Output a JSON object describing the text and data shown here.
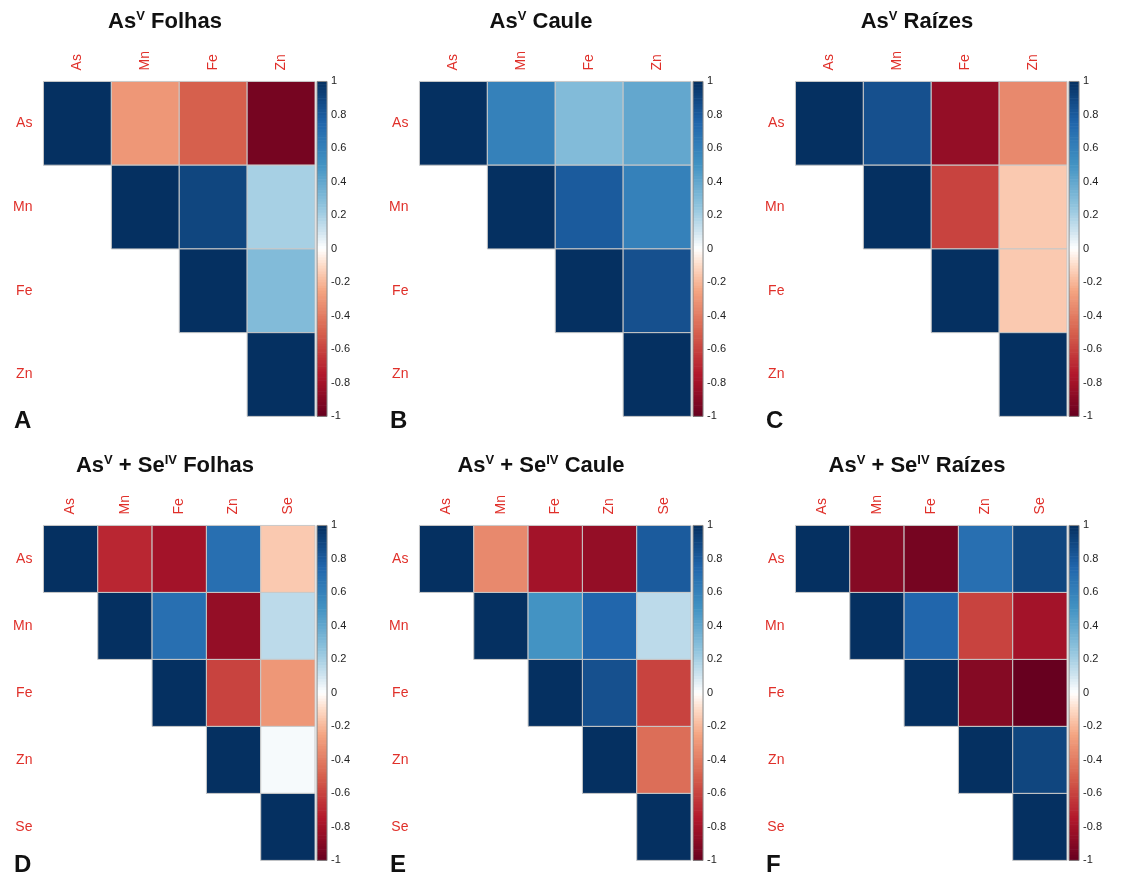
{
  "chart_data": [
    {
      "type": "heatmap",
      "title": "As$^{V}$ Folhas",
      "categories": [
        "As",
        "Mn",
        "Fe",
        "Zn"
      ],
      "y_categories": [
        "As",
        "Mn",
        "Fe",
        "Zn"
      ],
      "cells": [
        [
          1,
          -0.3,
          -0.5,
          -0.95
        ],
        [
          null,
          1,
          0.9,
          0.2
        ],
        [
          null,
          null,
          1,
          0.3
        ],
        [
          null,
          null,
          null,
          1
        ]
      ],
      "clim": [
        -1,
        1
      ],
      "cticks": [
        -1,
        -0.8,
        -0.6,
        -0.4,
        -0.2,
        0,
        0.2,
        0.4,
        0.6,
        0.8,
        1
      ],
      "annotations": [
        "A"
      ]
    },
    {
      "type": "heatmap",
      "title": "As$^{V}$ Caule",
      "categories": [
        "As",
        "Mn",
        "Fe",
        "Zn"
      ],
      "y_categories": [
        "As",
        "Mn",
        "Fe",
        "Zn"
      ],
      "cells": [
        [
          1,
          0.6,
          0.3,
          0.4
        ],
        [
          null,
          1,
          0.8,
          0.6
        ],
        [
          null,
          null,
          1,
          0.85
        ],
        [
          null,
          null,
          null,
          1
        ]
      ],
      "clim": [
        -1,
        1
      ],
      "cticks": [
        -1,
        -0.8,
        -0.6,
        -0.4,
        -0.2,
        0,
        0.2,
        0.4,
        0.6,
        0.8,
        1
      ],
      "annotations": [
        "B"
      ]
    },
    {
      "type": "heatmap",
      "title": "As$^{V}$ Raízes",
      "categories": [
        "As",
        "Mn",
        "Fe",
        "Zn"
      ],
      "y_categories": [
        "As",
        "Mn",
        "Fe",
        "Zn"
      ],
      "cells": [
        [
          1,
          0.85,
          -0.85,
          -0.35
        ],
        [
          null,
          1,
          -0.6,
          -0.15
        ],
        [
          null,
          null,
          1,
          -0.15
        ],
        [
          null,
          null,
          null,
          1
        ]
      ],
      "clim": [
        -1,
        1
      ],
      "cticks": [
        -1,
        -0.8,
        -0.6,
        -0.4,
        -0.2,
        0,
        0.2,
        0.4,
        0.6,
        0.8,
        1
      ],
      "annotations": [
        "C"
      ]
    },
    {
      "type": "heatmap",
      "title": "As$^{V}$ + Se$^{IV}$ Folhas",
      "categories": [
        "As",
        "Mn",
        "Fe",
        "Zn",
        "Se"
      ],
      "y_categories": [
        "As",
        "Mn",
        "Fe",
        "Zn",
        "Se"
      ],
      "cells": [
        [
          1,
          -0.7,
          -0.8,
          0.7,
          -0.15
        ],
        [
          null,
          1,
          0.7,
          -0.85,
          0.15
        ],
        [
          null,
          null,
          1,
          -0.6,
          -0.3
        ],
        [
          null,
          null,
          null,
          1,
          0.02
        ],
        [
          null,
          null,
          null,
          null,
          1
        ]
      ],
      "clim": [
        -1,
        1
      ],
      "cticks": [
        -1,
        -0.8,
        -0.6,
        -0.4,
        -0.2,
        0,
        0.2,
        0.4,
        0.6,
        0.8,
        1
      ],
      "annotations": [
        "D"
      ]
    },
    {
      "type": "heatmap",
      "title": "As$^{V}$ + Se$^{IV}$ Caule",
      "categories": [
        "As",
        "Mn",
        "Fe",
        "Zn",
        "Se"
      ],
      "y_categories": [
        "As",
        "Mn",
        "Fe",
        "Zn",
        "Se"
      ],
      "cells": [
        [
          1,
          -0.35,
          -0.8,
          -0.85,
          0.8
        ],
        [
          null,
          1,
          0.5,
          0.75,
          0.15
        ],
        [
          null,
          null,
          1,
          0.85,
          -0.6
        ],
        [
          null,
          null,
          null,
          1,
          -0.45
        ],
        [
          null,
          null,
          null,
          null,
          1
        ]
      ],
      "clim": [
        -1,
        1
      ],
      "cticks": [
        -1,
        -0.8,
        -0.6,
        -0.4,
        -0.2,
        0,
        0.2,
        0.4,
        0.6,
        0.8,
        1
      ],
      "annotations": [
        "E"
      ]
    },
    {
      "type": "heatmap",
      "title": "As$^{V}$ + Se$^{IV}$ Raízes",
      "categories": [
        "As",
        "Mn",
        "Fe",
        "Zn",
        "Se"
      ],
      "y_categories": [
        "As",
        "Mn",
        "Fe",
        "Zn",
        "Se"
      ],
      "cells": [
        [
          1,
          -0.9,
          -0.95,
          0.7,
          0.9
        ],
        [
          null,
          1,
          0.75,
          -0.6,
          -0.8
        ],
        [
          null,
          null,
          1,
          -0.9,
          -1
        ],
        [
          null,
          null,
          null,
          1,
          0.9
        ],
        [
          null,
          null,
          null,
          null,
          1
        ]
      ],
      "clim": [
        -1,
        1
      ],
      "cticks": [
        -1,
        -0.8,
        -0.6,
        -0.4,
        -0.2,
        0,
        0.2,
        0.4,
        0.6,
        0.8,
        1
      ],
      "annotations": [
        "F"
      ]
    }
  ]
}
